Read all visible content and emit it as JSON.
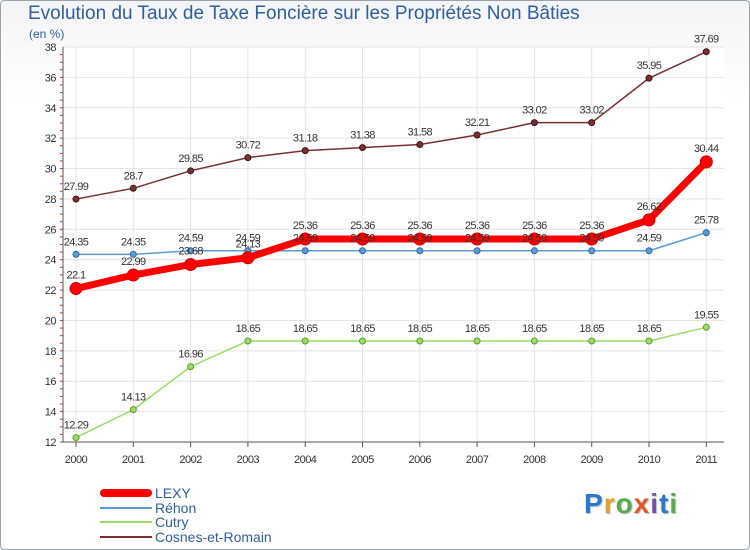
{
  "chart_data": {
    "type": "line",
    "title": "Evolution du Taux de Taxe Foncière sur les Propriétés Non Bâties",
    "subtitle": "(en %)",
    "categories": [
      "2000",
      "2001",
      "2002",
      "2003",
      "2004",
      "2005",
      "2006",
      "2007",
      "2008",
      "2009",
      "2010",
      "2011"
    ],
    "ylim": [
      12,
      38
    ],
    "yticks": [
      12,
      14,
      16,
      18,
      20,
      22,
      24,
      26,
      28,
      30,
      32,
      34,
      36,
      38
    ],
    "grid": true,
    "series": [
      {
        "name": "LEXY",
        "color": "#ff0000",
        "values": [
          22.1,
          22.99,
          23.68,
          24.13,
          25.36,
          25.36,
          25.36,
          25.36,
          25.36,
          25.36,
          26.62,
          30.44
        ],
        "labels": [
          "22.1",
          "22.99",
          "23.68",
          "24.13",
          "25.36",
          "25.36",
          "25.36",
          "25.36",
          "25.36",
          "25.36",
          "26.62",
          "30.44"
        ]
      },
      {
        "name": "Réhon",
        "color": "#5b9bd5",
        "values": [
          24.35,
          24.35,
          24.59,
          24.59,
          24.59,
          24.59,
          24.59,
          24.59,
          24.59,
          24.59,
          24.59,
          25.78
        ],
        "labels": [
          "24.35",
          "24.35",
          "24.59",
          "24.59",
          "24.59",
          "24.59",
          "24.59",
          "24.59",
          "24.59",
          "24.59",
          "24.59",
          "25.78"
        ]
      },
      {
        "name": "Cutry",
        "color": "#99dd66",
        "values": [
          12.29,
          14.13,
          16.96,
          18.65,
          18.65,
          18.65,
          18.65,
          18.65,
          18.65,
          18.65,
          18.65,
          19.55
        ],
        "labels": [
          "12.29",
          "14.13",
          "16.96",
          "18.65",
          "18.65",
          "18.65",
          "18.65",
          "18.65",
          "18.65",
          "18.65",
          "18.65",
          "19.55"
        ]
      },
      {
        "name": "Cosnes-et-Romain",
        "color": "#7a3030",
        "values": [
          27.99,
          28.7,
          29.85,
          30.72,
          31.18,
          31.38,
          31.58,
          32.21,
          33.02,
          33.02,
          35.95,
          37.69
        ],
        "labels": [
          "27.99",
          "28.7",
          "29.85",
          "30.72",
          "31.18",
          "31.38",
          "31.58",
          "32.21",
          "33.02",
          "33.02",
          "35.95",
          "37.69"
        ]
      }
    ]
  },
  "logo": {
    "text": "Proxiti",
    "letters": [
      "P",
      "r",
      "o",
      "x",
      "i",
      "t",
      "i"
    ],
    "colors": [
      "#2b77c9",
      "#e2a12c",
      "#59a94f",
      "#e0582a",
      "#7b4fa8",
      "#2b77c9",
      "#59a94f"
    ]
  }
}
